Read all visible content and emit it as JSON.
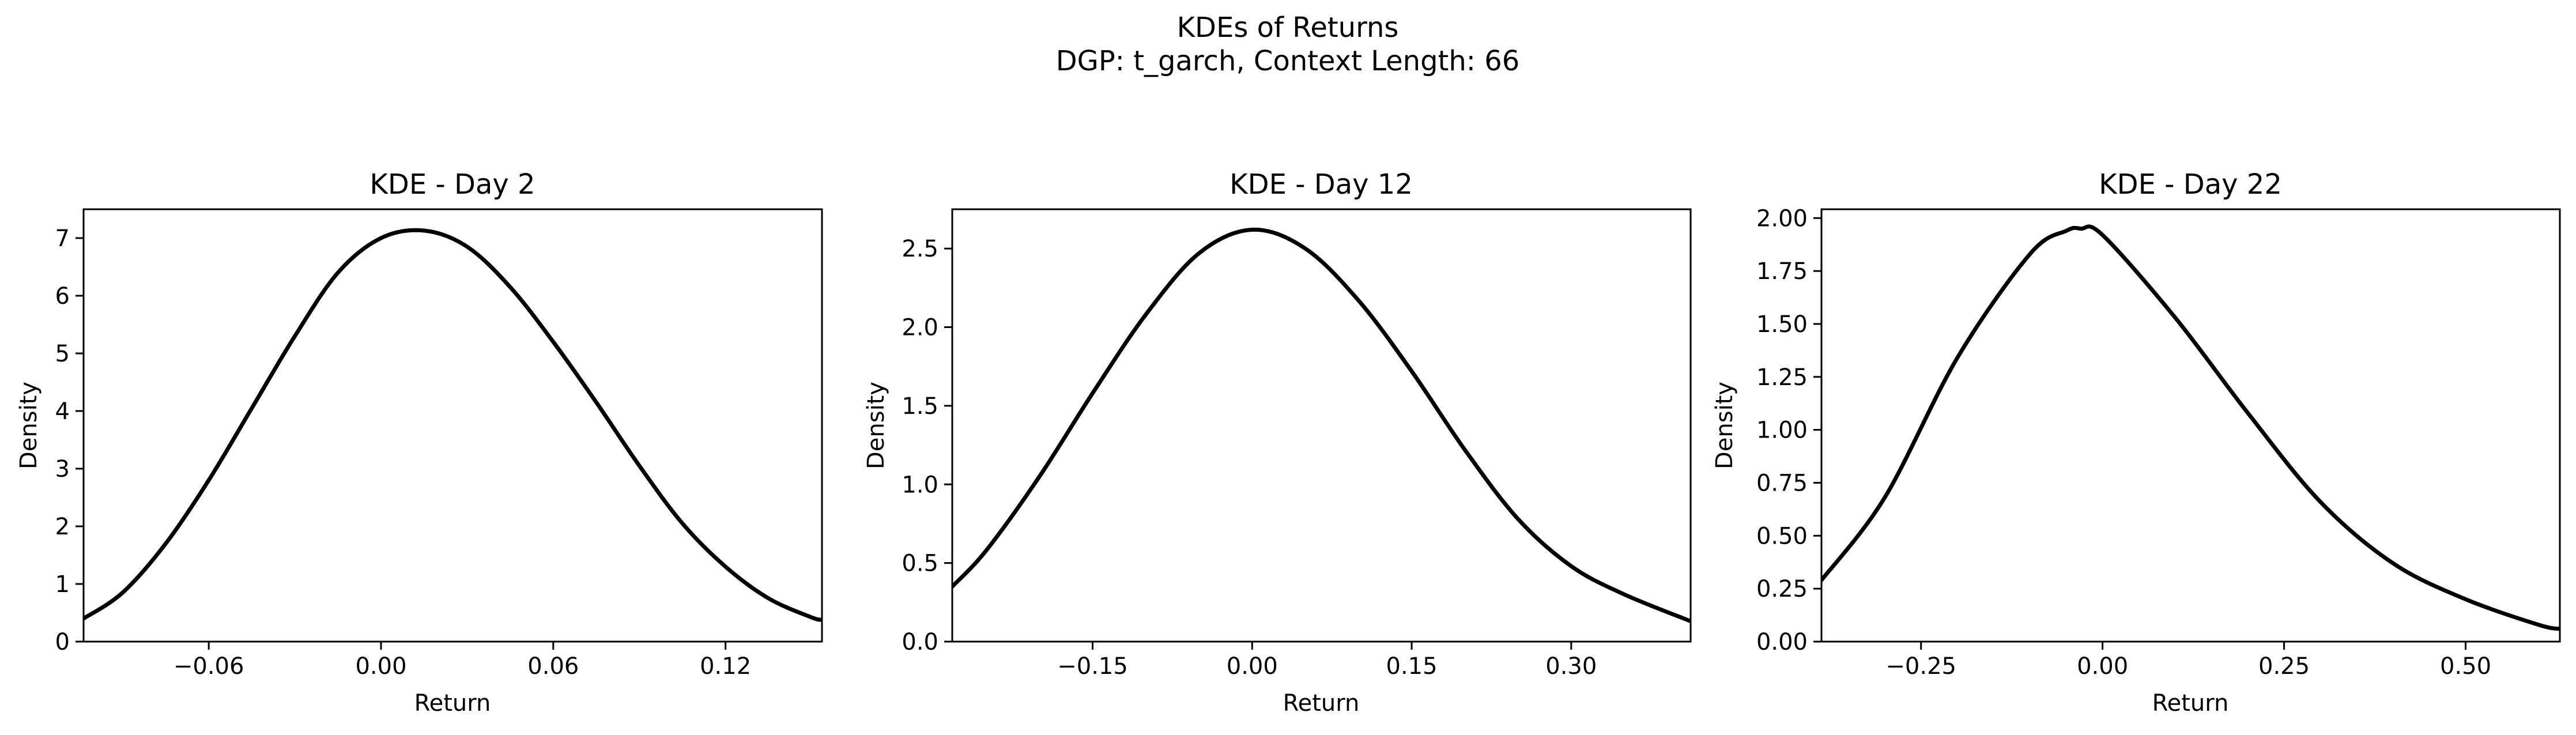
{
  "figure": {
    "title_line1": "KDEs of Returns",
    "title_line2": "DGP: t_garch, Context Length: 66"
  },
  "chart_data": [
    {
      "type": "line",
      "title": "KDE - Day 2",
      "xlabel": "Return",
      "ylabel": "Density",
      "xlim": [
        -0.1036,
        0.1536
      ],
      "ylim": [
        0,
        7.5
      ],
      "xticks": [
        -0.06,
        0.0,
        0.06,
        0.12
      ],
      "xtick_labels": [
        "−0.06",
        "0.00",
        "0.06",
        "0.12"
      ],
      "yticks": [
        0,
        1,
        2,
        3,
        4,
        5,
        6,
        7
      ],
      "ytick_labels": [
        "0",
        "1",
        "2",
        "3",
        "4",
        "5",
        "6",
        "7"
      ],
      "grid": false,
      "line_color": "#000000",
      "series": [
        {
          "x": [
            -0.1036,
            -0.09,
            -0.075,
            -0.06,
            -0.045,
            -0.03,
            -0.015,
            0.0,
            0.015,
            0.03,
            0.045,
            0.06,
            0.075,
            0.09,
            0.105,
            0.12,
            0.135,
            0.15,
            0.1536
          ],
          "y": [
            0.4,
            0.85,
            1.7,
            2.8,
            4.05,
            5.3,
            6.4,
            7.0,
            7.13,
            6.85,
            6.15,
            5.2,
            4.15,
            3.05,
            2.05,
            1.3,
            0.75,
            0.42,
            0.38
          ]
        }
      ]
    },
    {
      "type": "line",
      "title": "KDE - Day 12",
      "xlabel": "Return",
      "ylabel": "Density",
      "xlim": [
        -0.282,
        0.4123
      ],
      "ylim": [
        0,
        2.75
      ],
      "xticks": [
        -0.15,
        0.0,
        0.15,
        0.3
      ],
      "xtick_labels": [
        "−0.15",
        "0.00",
        "0.15",
        "0.30"
      ],
      "yticks": [
        0,
        0.5,
        1.0,
        1.5,
        2.0,
        2.5
      ],
      "ytick_labels": [
        "0.0",
        "0.5",
        "1.0",
        "1.5",
        "2.0",
        "2.5"
      ],
      "grid": false,
      "line_color": "#000000",
      "series": [
        {
          "x": [
            -0.282,
            -0.25,
            -0.2,
            -0.15,
            -0.1,
            -0.05,
            0.0,
            0.05,
            0.1,
            0.15,
            0.2,
            0.25,
            0.3,
            0.35,
            0.4123
          ],
          "y": [
            0.35,
            0.58,
            1.05,
            1.58,
            2.08,
            2.47,
            2.62,
            2.5,
            2.17,
            1.72,
            1.22,
            0.78,
            0.48,
            0.3,
            0.13
          ]
        }
      ]
    },
    {
      "type": "line",
      "title": "KDE - Day 22",
      "xlabel": "Return",
      "ylabel": "Density",
      "xlim": [
        -0.3871,
        0.6298
      ],
      "ylim": [
        0,
        2.0416
      ],
      "xticks": [
        -0.25,
        0.0,
        0.25,
        0.5
      ],
      "xtick_labels": [
        "−0.25",
        "0.00",
        "0.25",
        "0.50"
      ],
      "yticks": [
        0,
        0.25,
        0.5,
        0.75,
        1.0,
        1.25,
        1.5,
        1.75,
        2.0
      ],
      "ytick_labels": [
        "0.00",
        "0.25",
        "0.50",
        "0.75",
        "1.00",
        "1.25",
        "1.50",
        "1.75",
        "2.00"
      ],
      "grid": false,
      "line_color": "#000000",
      "series": [
        {
          "x": [
            -0.3871,
            -0.3,
            -0.2,
            -0.1,
            -0.05,
            -0.03,
            0.0,
            0.1,
            0.2,
            0.3,
            0.4,
            0.5,
            0.6,
            0.6298
          ],
          "y": [
            0.29,
            0.68,
            1.34,
            1.83,
            1.94,
            1.95,
            1.92,
            1.53,
            1.08,
            0.66,
            0.37,
            0.2,
            0.08,
            0.06
          ]
        }
      ]
    }
  ]
}
